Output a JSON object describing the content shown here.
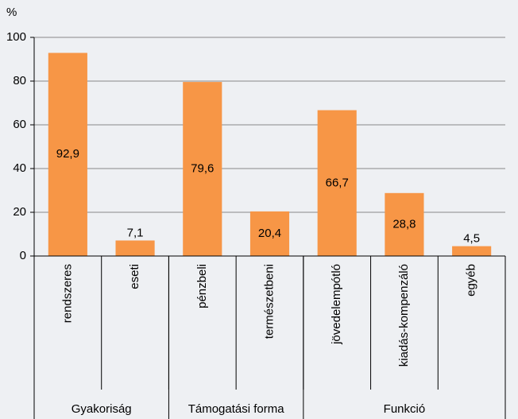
{
  "chart_data": {
    "type": "bar",
    "y_unit": "%",
    "categories": [
      "rendszeres",
      "eseti",
      "pénzbeli",
      "természetbeni",
      "jövedelempótló",
      "kiadás-kompenzáló",
      "egyéb"
    ],
    "values": [
      92.9,
      7.1,
      79.6,
      20.4,
      66.7,
      28.8,
      4.5
    ],
    "value_labels": [
      "92,9",
      "7,1",
      "79,6",
      "20,4",
      "66,7",
      "28,8",
      "4,5"
    ],
    "groups": [
      {
        "label": "Gyakoriság",
        "span": 2
      },
      {
        "label": "Támogatási forma",
        "span": 2
      },
      {
        "label": "Funkció",
        "span": 3
      }
    ],
    "color": "#f79646",
    "ylim": [
      0,
      100
    ],
    "yticks": [
      0,
      20,
      40,
      60,
      80,
      100
    ],
    "grid": true
  }
}
